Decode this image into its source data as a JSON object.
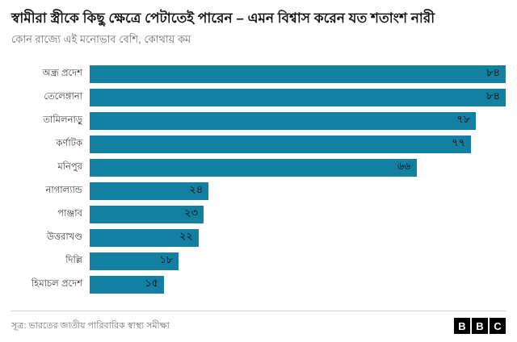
{
  "header": {
    "title": "স্বামীরা স্ত্রীকে কিছু ক্ষেত্রে পেটাতেই পারেন – এমন বিশ্বাস করেন যত শতাংশ নারী",
    "subtitle": "কোন রাজ্যে এই মনোভাব বেশি, কোথায় কম"
  },
  "footer": {
    "source": "সূত্র: ভারতের জাতীয় পারিবারিক স্বাস্থ্য সমীক্ষা",
    "logo_letters": [
      "B",
      "B",
      "C"
    ]
  },
  "chart_data": {
    "type": "bar",
    "orientation": "horizontal",
    "title": "স্বামীরা স্ত্রীকে কিছু ক্ষেত্রে পেটাতেই পারেন – এমন বিশ্বাস করেন যত শতাংশ নারী",
    "subtitle": "কোন রাজ্যে এই মনোভাব বেশি, কোথায় কম",
    "source": "সূত্র: ভারতের জাতীয় পারিবারিক স্বাস্থ্য সমীক্ষা",
    "categories": [
      "অন্ধ্র প্রদেশ",
      "তেলেঙ্গানা",
      "তামিলনাড়ু",
      "কর্ণাটক",
      "মনিপুর",
      "নাগাল্যান্ড",
      "পাঞ্জাব",
      "উত্তরাখণ্ড",
      "দিল্লি",
      "হিমাচল প্রদেশ"
    ],
    "values": [
      84,
      84,
      78,
      77,
      66,
      24,
      23,
      22,
      18,
      15
    ],
    "value_labels": [
      "৮৪",
      "৮৪",
      "৭৮",
      "৭৭",
      "৬৬",
      "২৪",
      "২৩",
      "২২",
      "১৮",
      "১৫"
    ],
    "xlim": [
      0,
      84
    ],
    "bar_color": "#1380a1",
    "grid": false,
    "legend": false
  }
}
